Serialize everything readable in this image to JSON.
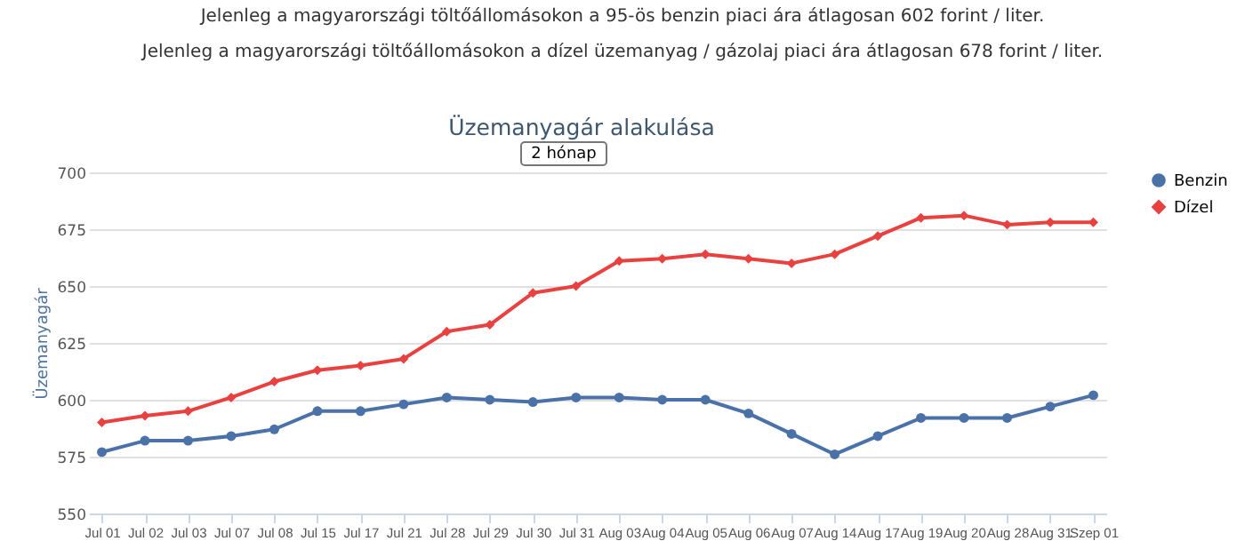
{
  "chart_data": {
    "type": "line",
    "title": "Üzemanyagár alakulása",
    "subtitle": "2 hónap",
    "annotations": [
      "Jelenleg a magyarországi töltőállomásokon a 95-ös benzin piaci ára átlagosan 602 forint / liter.",
      "Jelenleg a magyarországi töltőállomásokon a dízel üzemanyag / gázolaj piaci ára átlagosan 678 forint / liter."
    ],
    "ylabel": "Üzemanyagár",
    "categories": [
      "Jul 01",
      "Jul 02",
      "Jul 03",
      "Jul 07",
      "Jul 08",
      "Jul 15",
      "Jul 17",
      "Jul 21",
      "Jul 28",
      "Jul 29",
      "Jul 30",
      "Jul 31",
      "Aug 03",
      "Aug 04",
      "Aug 05",
      "Aug 06",
      "Aug 07",
      "Aug 14",
      "Aug 17",
      "Aug 19",
      "Aug 20",
      "Aug 28",
      "Aug 31",
      "Szep 01"
    ],
    "series": [
      {
        "name": "Benzin",
        "color": "#4a72a8",
        "marker": "circle",
        "values": [
          577,
          582,
          582,
          584,
          587,
          595,
          595,
          598,
          601,
          600,
          599,
          601,
          601,
          600,
          600,
          594,
          585,
          576,
          584,
          592,
          592,
          592,
          597,
          602
        ]
      },
      {
        "name": "Dízel",
        "color": "#e8413f",
        "marker": "diamond",
        "values": [
          590,
          593,
          595,
          601,
          608,
          613,
          615,
          618,
          630,
          633,
          647,
          650,
          661,
          662,
          664,
          662,
          660,
          664,
          672,
          680,
          681,
          677,
          678,
          678
        ]
      }
    ],
    "ylim": [
      550,
      700
    ],
    "yticks": [
      550,
      575,
      600,
      625,
      650,
      675,
      700
    ],
    "grid": "y",
    "legend": "right",
    "line_style": "solid"
  }
}
